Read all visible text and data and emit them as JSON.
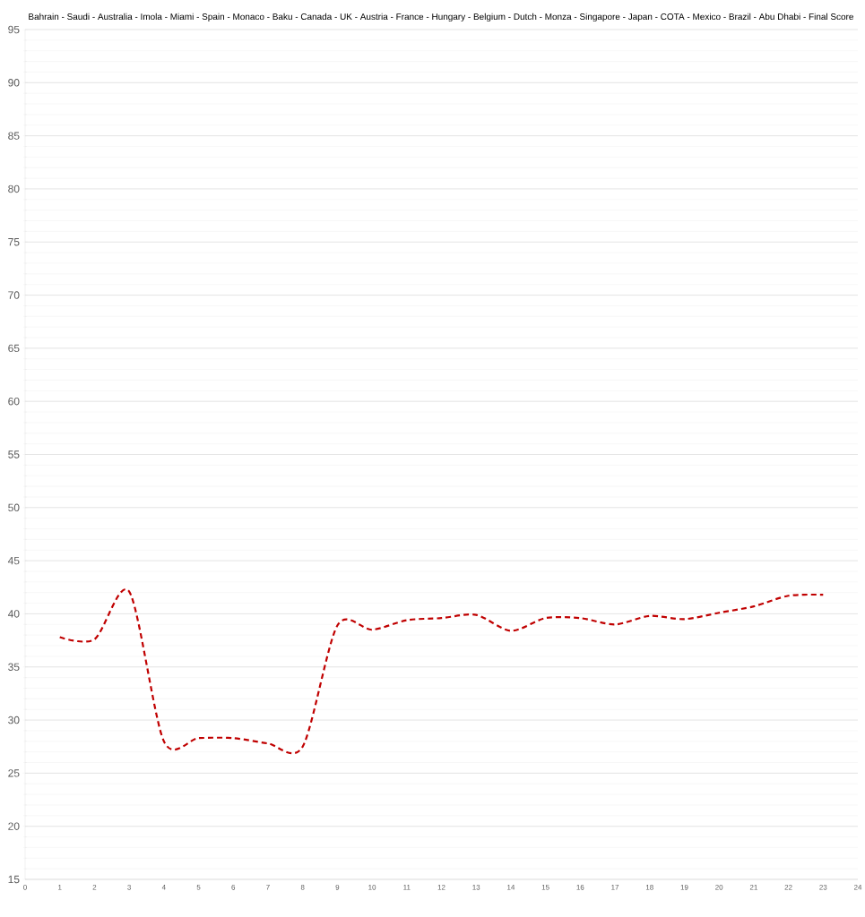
{
  "chart_data": {
    "type": "line",
    "title": "Bahrain - Saudi - Australia - Imola -  Miami  -  Spain  - Monaco -  Baku  - Canada -   UK   - Austria - France - Hungary - Belgium - Dutch - Monza - Singapore - Japan - COTA - Mexico - Brazil - Abu Dhabi - Final Score",
    "x": [
      1,
      2,
      3,
      4,
      5,
      6,
      7,
      8,
      9,
      10,
      11,
      12,
      13,
      14,
      15,
      16,
      17,
      18,
      19,
      20,
      21,
      22,
      23
    ],
    "series": [
      {
        "color": "#c00000",
        "values": [
          37.8,
          37.6,
          42.1,
          28.0,
          28.3,
          28.3,
          27.8,
          27.5,
          38.9,
          38.5,
          39.4,
          39.6,
          39.9,
          38.4,
          39.6,
          39.6,
          39.0,
          39.8,
          39.5,
          40.1,
          40.7,
          41.7,
          41.8
        ]
      }
    ],
    "xlim": [
      0,
      24
    ],
    "xticks": [
      0,
      1,
      2,
      3,
      4,
      5,
      6,
      7,
      8,
      9,
      10,
      11,
      12,
      13,
      14,
      15,
      16,
      17,
      18,
      19,
      20,
      21,
      22,
      23,
      24
    ],
    "ylim": [
      15,
      95
    ],
    "yticks": [
      15,
      20,
      25,
      30,
      35,
      40,
      45,
      50,
      55,
      60,
      65,
      70,
      75,
      80,
      85,
      90,
      95
    ],
    "grid": "y",
    "marker": "none",
    "line_style": "dashed"
  }
}
